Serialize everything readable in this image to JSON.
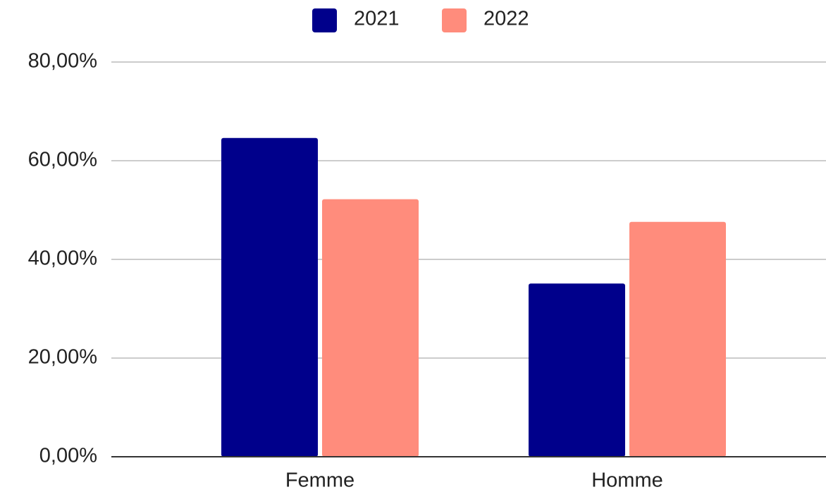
{
  "chart_data": {
    "type": "bar",
    "categories": [
      "Femme",
      "Homme"
    ],
    "series": [
      {
        "name": "2021",
        "color": "#00008b",
        "values": [
          64.6,
          35.1
        ]
      },
      {
        "name": "2022",
        "color": "#ff8c7c",
        "values": [
          52.2,
          47.6
        ]
      }
    ],
    "ylim": [
      0,
      80
    ],
    "yticks": [
      {
        "value": 0,
        "label": "0,00%"
      },
      {
        "value": 20,
        "label": "20,00%"
      },
      {
        "value": 40,
        "label": "40,00%"
      },
      {
        "value": 60,
        "label": "60,00%"
      },
      {
        "value": 80,
        "label": "80,00%"
      }
    ],
    "grid": true,
    "legend": "top"
  }
}
